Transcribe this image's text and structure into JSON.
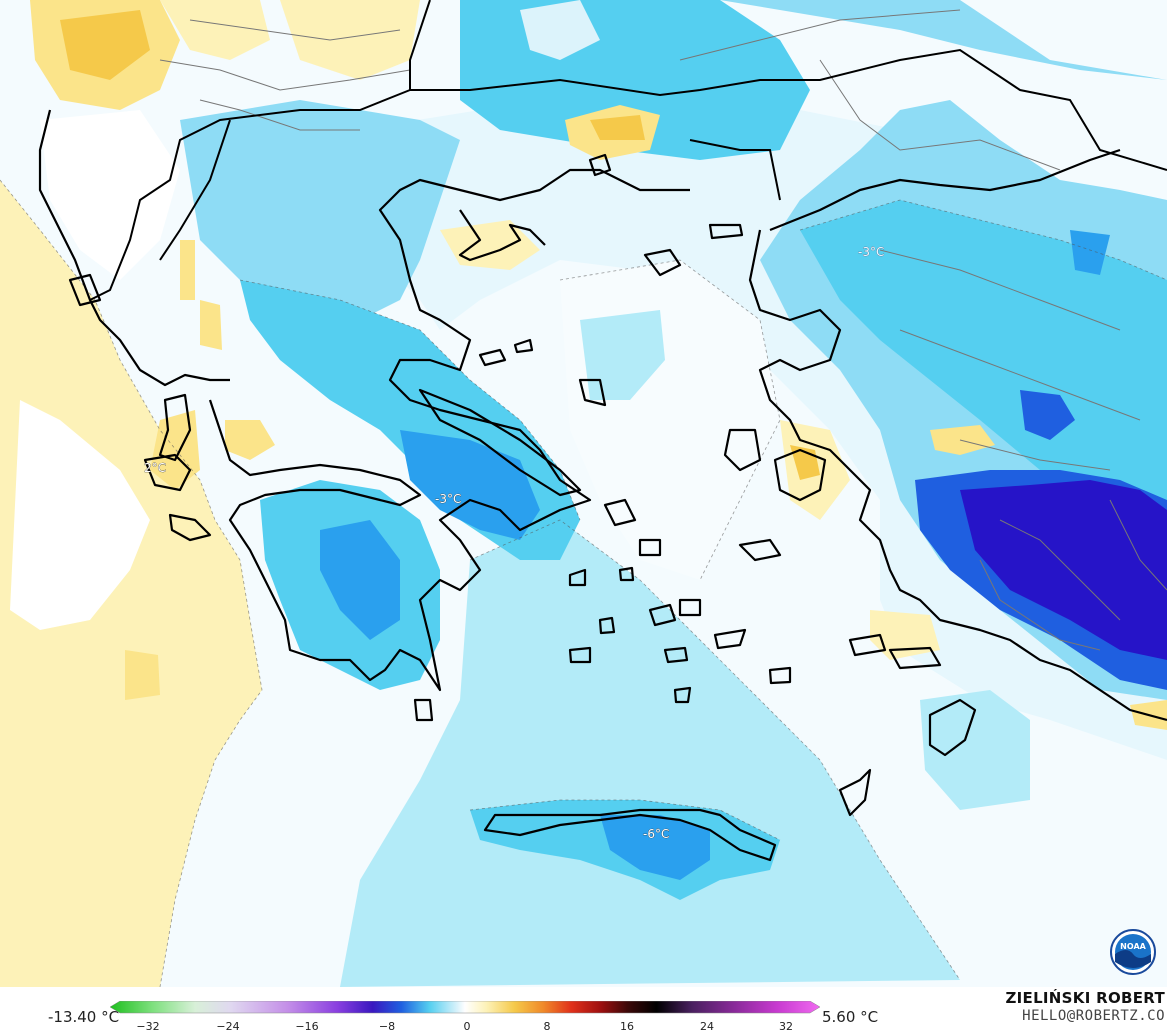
{
  "map": {
    "temperature_labels": [
      "-3°C",
      "-3°C",
      "-6°C",
      "2°C"
    ],
    "logo_text": "NOAA",
    "colors": {
      "sea_white": "#ffffff",
      "light_blue": "#dcf3fb",
      "mid_light_blue": "#b3ebf8",
      "cyan": "#55cff0",
      "blue": "#2aa0ee",
      "deep_blue": "#1f5fe0",
      "indigo": "#2614c8",
      "violet": "#3a18c0",
      "light_yellow": "#fdf2b8",
      "yellow": "#fbe48a",
      "orange_yellow": "#f5c94a",
      "coast": "#000000",
      "border": "#666666"
    }
  },
  "legend": {
    "min_value": "-13.40 °C",
    "max_value": "5.60 °C",
    "ticks": [
      "−32",
      "−24",
      "−16",
      "−8",
      "0",
      "8",
      "16",
      "24",
      "32"
    ]
  },
  "credits": {
    "author": "ZIELIŃSKI ROBERT",
    "email": "HELLO@ROBERTZ.CO"
  }
}
